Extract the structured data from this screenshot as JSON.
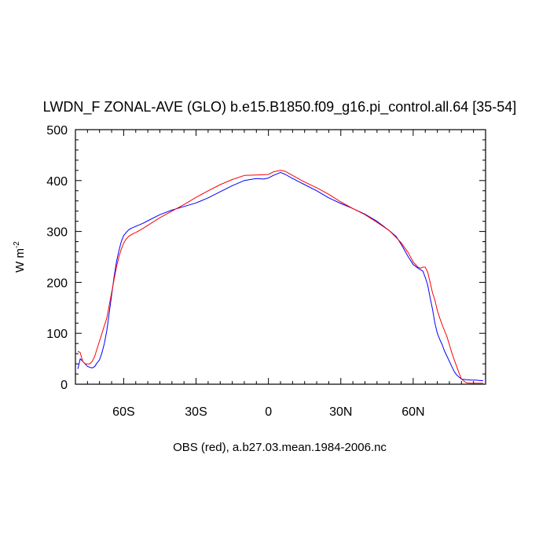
{
  "chart_data": {
    "type": "line",
    "title": "LWDN_F ZONAL-AVE (GLO) b.e15.B1850.f09_g16.pi_control.all.64 [35-54]",
    "ylabel": "W m",
    "ylabel_sup": "-2",
    "footnote": "OBS (red), a.b27.03.mean.1984-2006.nc",
    "xlim": [
      -80,
      90
    ],
    "ylim": [
      0,
      500
    ],
    "x_ticks": [
      {
        "value": -60,
        "label": "60S"
      },
      {
        "value": -30,
        "label": "30S"
      },
      {
        "value": 0,
        "label": "0"
      },
      {
        "value": 30,
        "label": "30N"
      },
      {
        "value": 60,
        "label": "60N"
      }
    ],
    "y_ticks": [
      {
        "value": 0,
        "label": "0"
      },
      {
        "value": 100,
        "label": "100"
      },
      {
        "value": 200,
        "label": "200"
      },
      {
        "value": 300,
        "label": "300"
      },
      {
        "value": 400,
        "label": "400"
      },
      {
        "value": 500,
        "label": "500"
      }
    ],
    "grid": false,
    "legend": "none",
    "series": [
      {
        "color": "#0000ff",
        "x": [
          -79,
          -78,
          -77,
          -76,
          -75,
          -74,
          -73,
          -72,
          -71,
          -70,
          -69,
          -68,
          -67,
          -66,
          -65,
          -64,
          -63,
          -62,
          -61,
          -60,
          -59,
          -58,
          -57,
          -56,
          -55,
          -52,
          -50,
          -45,
          -40,
          -35,
          -30,
          -25,
          -20,
          -15,
          -10,
          -5,
          -2,
          0,
          2,
          5,
          7,
          10,
          15,
          20,
          25,
          30,
          35,
          40,
          45,
          50,
          53,
          55,
          58,
          60,
          62,
          63,
          64,
          65,
          66,
          67,
          68,
          69,
          70,
          71,
          72,
          73,
          74,
          75,
          76,
          77,
          78,
          79,
          80,
          82,
          84,
          86,
          88,
          89
        ],
        "y": [
          30,
          50,
          45,
          40,
          35,
          33,
          32,
          35,
          42,
          48,
          62,
          80,
          105,
          140,
          175,
          210,
          240,
          262,
          280,
          292,
          298,
          303,
          306,
          308,
          310,
          316,
          321,
          333,
          342,
          349,
          356,
          366,
          378,
          390,
          400,
          404,
          403,
          405,
          410,
          416,
          412,
          404,
          392,
          380,
          366,
          355,
          345,
          334,
          320,
          302,
          290,
          275,
          250,
          235,
          228,
          225,
          222,
          210,
          195,
          170,
          148,
          120,
          100,
          88,
          78,
          65,
          55,
          45,
          35,
          25,
          18,
          14,
          10,
          9,
          8,
          8,
          7,
          7
        ]
      },
      {
        "color": "#ff0000",
        "x": [
          -79,
          -78,
          -77,
          -76,
          -75,
          -74,
          -73,
          -72,
          -71,
          -70,
          -69,
          -68,
          -67,
          -66,
          -65,
          -64,
          -63,
          -62,
          -61,
          -60,
          -59,
          -58,
          -57,
          -56,
          -55,
          -52,
          -50,
          -45,
          -40,
          -35,
          -30,
          -25,
          -20,
          -15,
          -10,
          -5,
          0,
          2,
          5,
          7,
          10,
          15,
          20,
          25,
          30,
          35,
          40,
          45,
          50,
          53,
          55,
          58,
          60,
          62,
          63,
          64,
          65,
          66,
          67,
          68,
          69,
          70,
          71,
          72,
          73,
          74,
          75,
          76,
          77,
          78,
          79,
          80,
          82,
          84,
          86,
          88,
          89
        ],
        "y": [
          65,
          62,
          45,
          40,
          40,
          40,
          45,
          55,
          70,
          85,
          100,
          115,
          130,
          155,
          180,
          205,
          230,
          250,
          265,
          277,
          285,
          290,
          293,
          296,
          298,
          306,
          312,
          327,
          340,
          353,
          367,
          380,
          392,
          402,
          410,
          411,
          412,
          417,
          420,
          418,
          410,
          397,
          386,
          373,
          358,
          345,
          333,
          318,
          302,
          288,
          278,
          258,
          240,
          230,
          228,
          230,
          230,
          220,
          200,
          180,
          165,
          145,
          130,
          117,
          105,
          93,
          78,
          62,
          48,
          35,
          22,
          10,
          3,
          2,
          2,
          2,
          2
        ]
      }
    ]
  }
}
